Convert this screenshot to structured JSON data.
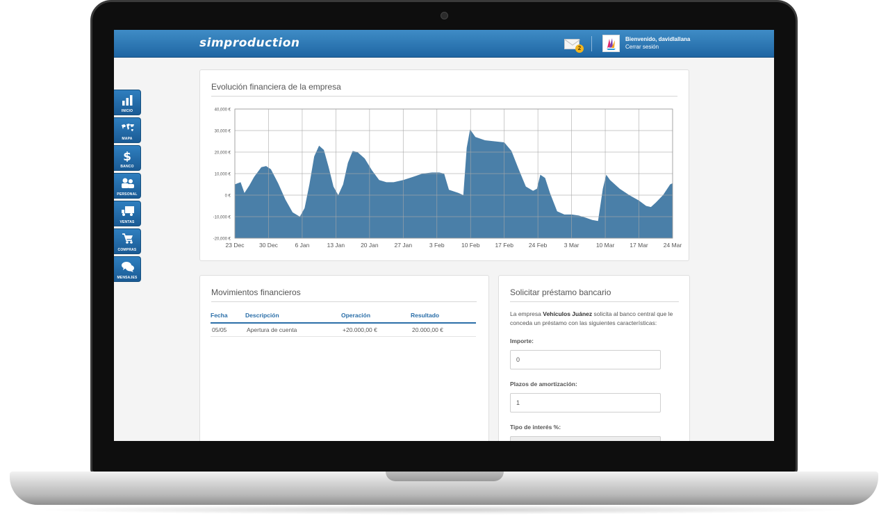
{
  "app": {
    "logo_text": "simproduction",
    "welcome_text": "Bienvenido, davidlallana",
    "logout_label": "Cerrar sesión",
    "mail_badge_count": "2"
  },
  "sidebar": {
    "items": [
      {
        "label": "INICIO",
        "icon": "bar-chart-icon"
      },
      {
        "label": "MAPA",
        "icon": "world-map-icon"
      },
      {
        "label": "BANCO",
        "icon": "dollar-icon"
      },
      {
        "label": "PERSONAL",
        "icon": "people-icon"
      },
      {
        "label": "VENTAS",
        "icon": "truck-icon"
      },
      {
        "label": "COMPRAS",
        "icon": "cart-icon"
      },
      {
        "label": "MENSAJES",
        "icon": "chat-bubbles-icon"
      }
    ]
  },
  "chart_panel": {
    "title": "Evolución financiera de la empresa"
  },
  "chart_data": {
    "type": "area",
    "title": "Evolución financiera de la empresa",
    "xlabel": "",
    "ylabel": "",
    "color": "#4a7fa8",
    "grid": true,
    "ylim": [
      -20000,
      40000
    ],
    "y_ticks": [
      "-20,000 €",
      "-10,000 €",
      "0 €",
      "10,000 €",
      "20,000 €",
      "30,000 €",
      "40,000 €"
    ],
    "y_tick_values": [
      -20000,
      -10000,
      0,
      10000,
      20000,
      30000,
      40000
    ],
    "x_ticks": [
      "23 Dec",
      "30 Dec",
      "6 Jan",
      "13 Jan",
      "20 Jan",
      "27 Jan",
      "3 Feb",
      "10 Feb",
      "17 Feb",
      "24 Feb",
      "3 Mar",
      "10 Mar",
      "17 Mar",
      "24 Mar"
    ],
    "x_days_range": [
      0,
      91
    ],
    "points": [
      [
        0,
        5000
      ],
      [
        0.6,
        5500
      ],
      [
        1.2,
        6000
      ],
      [
        2,
        1000
      ],
      [
        3,
        4500
      ],
      [
        4,
        8500
      ],
      [
        5.5,
        13000
      ],
      [
        6.5,
        13500
      ],
      [
        7.5,
        12000
      ],
      [
        9,
        5500
      ],
      [
        10.5,
        -2000
      ],
      [
        12,
        -8000
      ],
      [
        13.5,
        -10000
      ],
      [
        14.5,
        -6000
      ],
      [
        15.5,
        5000
      ],
      [
        16.5,
        18000
      ],
      [
        17.5,
        23000
      ],
      [
        18.5,
        21000
      ],
      [
        19.5,
        13000
      ],
      [
        20.5,
        4000
      ],
      [
        21.5,
        0
      ],
      [
        22.5,
        5000
      ],
      [
        23.5,
        15000
      ],
      [
        24.5,
        20500
      ],
      [
        25.5,
        20000
      ],
      [
        27,
        17000
      ],
      [
        28.5,
        11500
      ],
      [
        30,
        7000
      ],
      [
        31.5,
        6000
      ],
      [
        33,
        6000
      ],
      [
        35,
        7000
      ],
      [
        37,
        8500
      ],
      [
        39,
        10000
      ],
      [
        41,
        10500
      ],
      [
        42.5,
        10500
      ],
      [
        43.5,
        10000
      ],
      [
        44.5,
        2500
      ],
      [
        46.5,
        1000
      ],
      [
        47.5,
        0
      ],
      [
        48.2,
        22000
      ],
      [
        48.9,
        30500
      ],
      [
        50,
        27000
      ],
      [
        52,
        25500
      ],
      [
        54,
        25000
      ],
      [
        56,
        24500
      ],
      [
        57.5,
        20500
      ],
      [
        59,
        12000
      ],
      [
        60.5,
        4000
      ],
      [
        62,
        2000
      ],
      [
        62.8,
        3000
      ],
      [
        63.5,
        9500
      ],
      [
        64.5,
        8000
      ],
      [
        65.5,
        1000
      ],
      [
        67,
        -7500
      ],
      [
        68.5,
        -9000
      ],
      [
        70,
        -9000
      ],
      [
        71.5,
        -9500
      ],
      [
        73,
        -10500
      ],
      [
        74.3,
        -11500
      ],
      [
        75.5,
        -12000
      ],
      [
        76.5,
        3000
      ],
      [
        77.2,
        9500
      ],
      [
        78,
        7000
      ],
      [
        80,
        3000
      ],
      [
        82,
        0
      ],
      [
        84,
        -2500
      ],
      [
        85.5,
        -5000
      ],
      [
        86.5,
        -5500
      ],
      [
        87.5,
        -3500
      ],
      [
        89,
        0
      ],
      [
        90.5,
        5000
      ],
      [
        91,
        5500
      ]
    ]
  },
  "movements": {
    "title": "Movimientos financieros",
    "columns": [
      "Fecha",
      "Descripción",
      "Operación",
      "Resultado"
    ],
    "rows": [
      {
        "fecha": "05/05",
        "descripcion": "Apertura de cuenta",
        "operacion": "+20.000,00 €",
        "resultado": "20.000,00 €"
      }
    ]
  },
  "loan": {
    "title": "Solicitar préstamo bancario",
    "desc_pre": "La empresa ",
    "company": "Vehículos Juánez",
    "desc_post": " solicita al banco central que le conceda un préstamo con las siguientes características:",
    "importe_label": "Importe:",
    "importe_value": "0",
    "plazos_label": "Plazos de amortización:",
    "plazos_value": "1",
    "interes_label": "Tipo de interés %:",
    "interes_value": ""
  }
}
